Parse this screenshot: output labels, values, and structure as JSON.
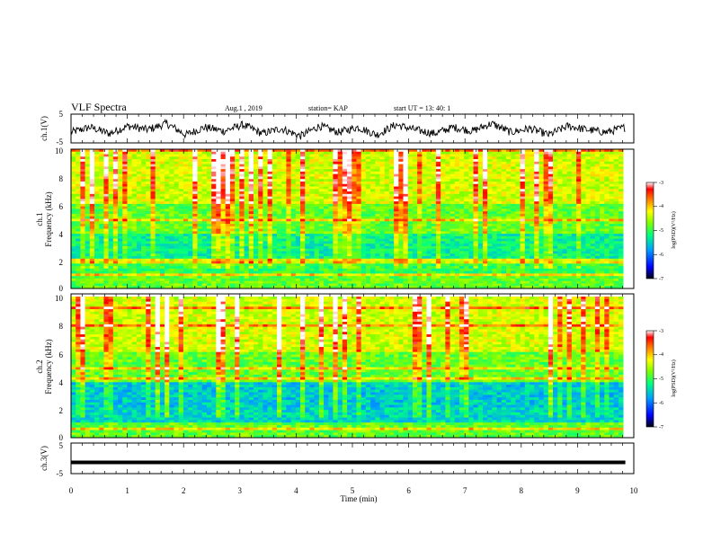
{
  "header": {
    "title": "VLF Spectra",
    "date": "Aug.1  , 2019",
    "station": "station= KAP",
    "start": "start  UT  =   13: 40: 1"
  },
  "chart_data": [
    {
      "type": "line",
      "ylabel": "ch.1(V)",
      "ylim": [
        -5,
        5
      ],
      "yticks": [
        "5",
        "-5"
      ],
      "xlim": [
        0,
        10
      ],
      "series": [
        {
          "values": [
            -1.5,
            0.5,
            -2.0,
            1.0,
            -0.5,
            2.0,
            -2.5,
            0.5,
            -1.0,
            1.5,
            -2.0,
            0.0,
            -3.0,
            1.0,
            -1.5,
            0.5,
            -2.5,
            1.5,
            -0.5,
            -2.0,
            0.5,
            -1.0,
            2.0,
            -1.5,
            0.0,
            -2.5,
            1.0,
            -0.5,
            -1.5,
            0.5
          ]
        }
      ]
    },
    {
      "type": "heatmap",
      "ylabel_line1": "ch.1",
      "ylabel_line2": "Frequency (kHz)",
      "ylim": [
        0,
        10
      ],
      "yticks": [
        "0",
        "2",
        "4",
        "6",
        "8",
        "10"
      ],
      "xlim": [
        0,
        10
      ],
      "colorbar": {
        "label": "log(PSD)(V²/Hz)",
        "range": [
          -7,
          -3
        ],
        "ticks": [
          "-3",
          "-4",
          "-5",
          "-6",
          "-7"
        ]
      }
    },
    {
      "type": "heatmap",
      "ylabel_line1": "ch.2",
      "ylabel_line2": "Frequency (kHz)",
      "ylim": [
        0,
        10
      ],
      "yticks": [
        "0",
        "2",
        "4",
        "6",
        "8",
        "10"
      ],
      "xlim": [
        0,
        10
      ],
      "colorbar": {
        "label": "log(PSD)(V²/Hz)",
        "range": [
          -7,
          -3
        ],
        "ticks": [
          "-3",
          "-4",
          "-5",
          "-6",
          "-7"
        ]
      }
    },
    {
      "type": "line",
      "ylabel": "ch.3(V)",
      "ylim": [
        -5,
        5
      ],
      "yticks": [
        "5",
        "-5"
      ],
      "xlim": [
        0,
        10
      ],
      "series": [
        {
          "values": [
            -1.5,
            -1.5
          ]
        }
      ]
    }
  ],
  "xaxis": {
    "label": "Time (min)",
    "ticks": [
      "0",
      "1",
      "2",
      "3",
      "4",
      "5",
      "6",
      "7",
      "8",
      "9",
      "10"
    ]
  }
}
